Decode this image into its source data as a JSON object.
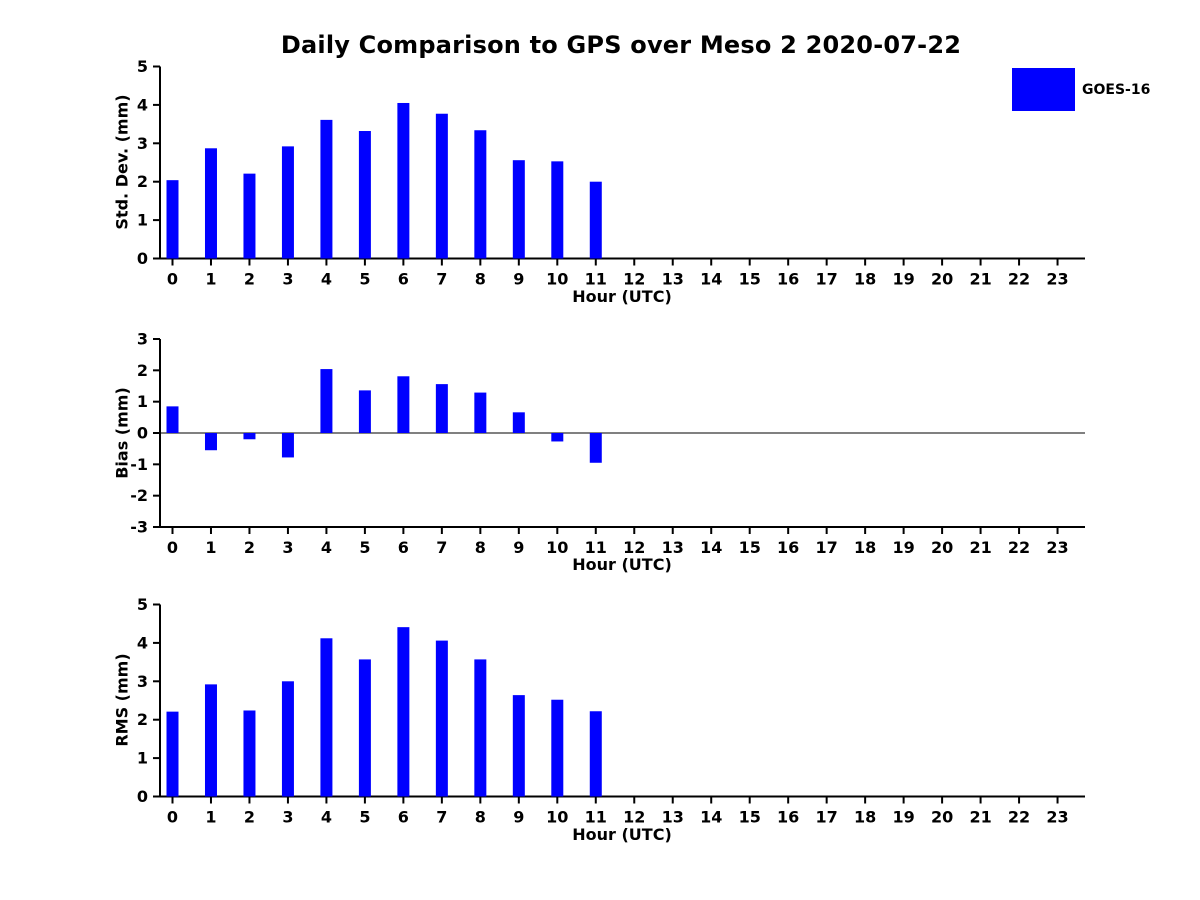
{
  "figure": {
    "title": "Daily Comparison to GPS over Meso 2 2020-07-22"
  },
  "legend": {
    "label": "GOES-16",
    "color": "#0000FF",
    "position": "top-right"
  },
  "chart_data": [
    {
      "type": "bar",
      "series_name": "GOES-16",
      "ylabel": "Std. Dev. (mm)",
      "xlabel": "Hour (UTC)",
      "categories": [
        "0",
        "1",
        "2",
        "3",
        "4",
        "5",
        "6",
        "7",
        "8",
        "9",
        "10",
        "11",
        "12",
        "13",
        "14",
        "15",
        "16",
        "17",
        "18",
        "19",
        "20",
        "21",
        "22",
        "23"
      ],
      "values": [
        2.04,
        2.87,
        2.21,
        2.92,
        3.61,
        3.32,
        4.05,
        3.77,
        3.34,
        2.56,
        2.53,
        2.0,
        null,
        null,
        null,
        null,
        null,
        null,
        null,
        null,
        null,
        null,
        null,
        null
      ],
      "ylim": [
        0,
        5
      ],
      "yticks": [
        5,
        4,
        3,
        2,
        1,
        0
      ],
      "grid": false,
      "legend_position": "none"
    },
    {
      "type": "bar",
      "series_name": "GOES-16",
      "ylabel": "Bias (mm)",
      "xlabel": "Hour (UTC)",
      "categories": [
        "0",
        "1",
        "2",
        "3",
        "4",
        "5",
        "6",
        "7",
        "8",
        "9",
        "10",
        "11",
        "12",
        "13",
        "14",
        "15",
        "16",
        "17",
        "18",
        "19",
        "20",
        "21",
        "22",
        "23"
      ],
      "values": [
        0.85,
        -0.55,
        -0.2,
        -0.78,
        2.04,
        1.36,
        1.81,
        1.56,
        1.29,
        0.66,
        -0.27,
        -0.95,
        null,
        null,
        null,
        null,
        null,
        null,
        null,
        null,
        null,
        null,
        null,
        null
      ],
      "ylim": [
        -3,
        3
      ],
      "yticks": [
        3,
        2,
        1,
        0,
        -1,
        -2,
        -3
      ],
      "zero_line": true,
      "grid": false,
      "legend_position": "none"
    },
    {
      "type": "bar",
      "series_name": "GOES-16",
      "ylabel": "RMS (mm)",
      "xlabel": "Hour (UTC)",
      "categories": [
        "0",
        "1",
        "2",
        "3",
        "4",
        "5",
        "6",
        "7",
        "8",
        "9",
        "10",
        "11",
        "12",
        "13",
        "14",
        "15",
        "16",
        "17",
        "18",
        "19",
        "20",
        "21",
        "22",
        "23"
      ],
      "values": [
        2.21,
        2.92,
        2.24,
        3.0,
        4.12,
        3.57,
        4.41,
        4.06,
        3.57,
        2.64,
        2.52,
        2.22,
        null,
        null,
        null,
        null,
        null,
        null,
        null,
        null,
        null,
        null,
        null,
        null
      ],
      "ylim": [
        0,
        5
      ],
      "yticks": [
        5,
        4,
        3,
        2,
        1,
        0
      ],
      "grid": false,
      "legend_position": "none"
    }
  ]
}
